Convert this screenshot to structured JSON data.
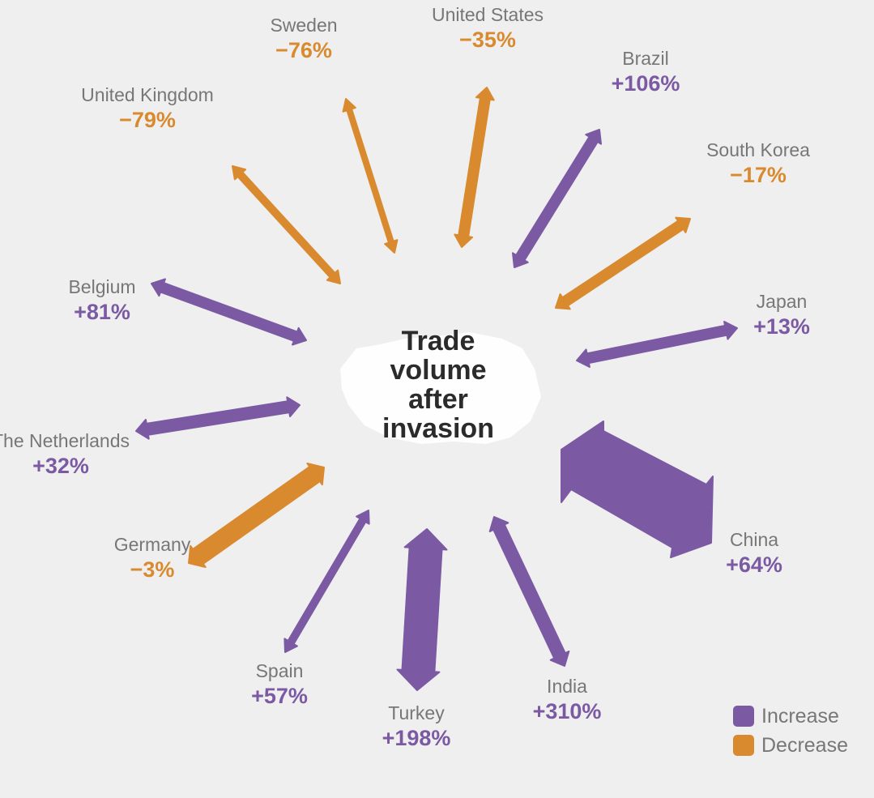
{
  "title": "Trade volume after invasion",
  "title_lines": [
    "Trade",
    "volume",
    "after",
    "invasion"
  ],
  "colors": {
    "increase": "#7b5aa3",
    "decrease": "#d98a2f",
    "background": "#efefef",
    "map": "#ffffff"
  },
  "legend": [
    {
      "label": "Increase",
      "kind": "increase"
    },
    {
      "label": "Decrease",
      "kind": "decrease"
    }
  ],
  "countries": [
    {
      "name": "United Kingdom",
      "change": "−79%",
      "kind": "decrease"
    },
    {
      "name": "Sweden",
      "change": "−76%",
      "kind": "decrease"
    },
    {
      "name": "United States",
      "change": "−35%",
      "kind": "decrease"
    },
    {
      "name": "Brazil",
      "change": "+106%",
      "kind": "increase"
    },
    {
      "name": "South Korea",
      "change": "−17%",
      "kind": "decrease"
    },
    {
      "name": "Japan",
      "change": "+13%",
      "kind": "increase"
    },
    {
      "name": "China",
      "change": "+64%",
      "kind": "increase"
    },
    {
      "name": "India",
      "change": "+310%",
      "kind": "increase"
    },
    {
      "name": "Turkey",
      "change": "+198%",
      "kind": "increase"
    },
    {
      "name": "Spain",
      "change": "+57%",
      "kind": "increase"
    },
    {
      "name": "Germany",
      "change": "−3%",
      "kind": "decrease"
    },
    {
      "name": "The Netherlands",
      "change": "+32%",
      "kind": "increase"
    },
    {
      "name": "Belgium",
      "change": "+81%",
      "kind": "increase"
    }
  ]
}
